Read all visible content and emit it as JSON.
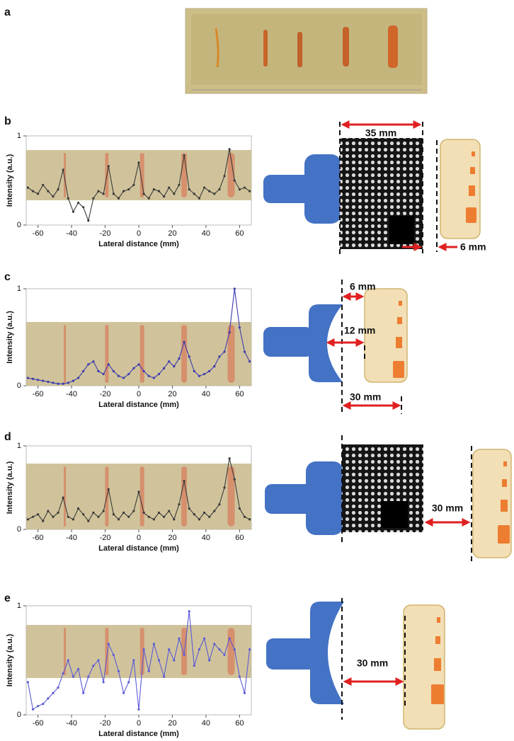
{
  "panels": [
    "a",
    "b",
    "c",
    "d",
    "e"
  ],
  "annotations": [
    "35 mm",
    "6 mm",
    "6 mm",
    "12 mm",
    "30 mm",
    "30 mm",
    "30 mm"
  ],
  "chart_data": [
    {
      "type": "line",
      "xlabel": "Lateral distance (mm)",
      "ylabel": "Intensity (a.u.)",
      "xlim": [
        -67,
        67
      ],
      "ylim": [
        0,
        1
      ],
      "xticks": [
        -60,
        -40,
        -20,
        0,
        20,
        40,
        60
      ],
      "yticks": [
        0,
        1
      ],
      "x": [
        -66,
        -63,
        -60,
        -57,
        -54,
        -51,
        -48,
        -45,
        -42,
        -39,
        -36,
        -33,
        -30,
        -27,
        -24,
        -21,
        -18,
        -15,
        -12,
        -9,
        -6,
        -3,
        0,
        3,
        6,
        9,
        12,
        15,
        18,
        21,
        24,
        27,
        30,
        33,
        36,
        39,
        42,
        45,
        48,
        51,
        54,
        57,
        60,
        63,
        66
      ],
      "series": [
        {
          "color": "#3a3a3a",
          "values": [
            0.42,
            0.38,
            0.35,
            0.45,
            0.38,
            0.32,
            0.4,
            0.62,
            0.3,
            0.15,
            0.25,
            0.2,
            0.05,
            0.3,
            0.38,
            0.35,
            0.66,
            0.35,
            0.3,
            0.38,
            0.4,
            0.45,
            0.7,
            0.35,
            0.3,
            0.4,
            0.38,
            0.32,
            0.42,
            0.35,
            0.45,
            0.78,
            0.4,
            0.35,
            0.3,
            0.42,
            0.38,
            0.35,
            0.4,
            0.55,
            0.85,
            0.5,
            0.4,
            0.42,
            0.38
          ]
        }
      ]
    },
    {
      "type": "line",
      "xlabel": "Lateral distance (mm)",
      "ylabel": "Intensity (a.u.)",
      "xlim": [
        -67,
        67
      ],
      "ylim": [
        0,
        1
      ],
      "xticks": [
        -60,
        -40,
        -20,
        0,
        20,
        40,
        60
      ],
      "yticks": [
        0,
        1
      ],
      "x": [
        -66,
        -63,
        -60,
        -57,
        -54,
        -51,
        -48,
        -45,
        -42,
        -39,
        -36,
        -33,
        -30,
        -27,
        -24,
        -21,
        -18,
        -15,
        -12,
        -9,
        -6,
        -3,
        0,
        3,
        6,
        9,
        12,
        15,
        18,
        21,
        24,
        27,
        30,
        33,
        36,
        39,
        42,
        45,
        48,
        51,
        54,
        57,
        60,
        63,
        66
      ],
      "series": [
        {
          "color": "#3b3bb0",
          "values": [
            0.08,
            0.07,
            0.06,
            0.05,
            0.04,
            0.03,
            0.02,
            0.02,
            0.03,
            0.05,
            0.08,
            0.15,
            0.22,
            0.25,
            0.15,
            0.12,
            0.22,
            0.15,
            0.1,
            0.08,
            0.12,
            0.18,
            0.22,
            0.15,
            0.1,
            0.08,
            0.12,
            0.18,
            0.25,
            0.2,
            0.28,
            0.45,
            0.3,
            0.15,
            0.1,
            0.12,
            0.15,
            0.2,
            0.3,
            0.35,
            0.55,
            1.0,
            0.6,
            0.35,
            0.25
          ]
        }
      ]
    },
    {
      "type": "line",
      "xlabel": "Lateral distance (mm)",
      "ylabel": "Intensity (a.u.)",
      "xlim": [
        -67,
        67
      ],
      "ylim": [
        0,
        1
      ],
      "xticks": [
        -60,
        -40,
        -20,
        0,
        20,
        40,
        60
      ],
      "yticks": [
        0,
        1
      ],
      "x": [
        -66,
        -63,
        -60,
        -57,
        -54,
        -51,
        -48,
        -45,
        -42,
        -39,
        -36,
        -33,
        -30,
        -27,
        -24,
        -21,
        -18,
        -15,
        -12,
        -9,
        -6,
        -3,
        0,
        3,
        6,
        9,
        12,
        15,
        18,
        21,
        24,
        27,
        30,
        33,
        36,
        39,
        42,
        45,
        48,
        51,
        54,
        57,
        60,
        63,
        66
      ],
      "series": [
        {
          "color": "#3a3a3a",
          "values": [
            0.12,
            0.15,
            0.18,
            0.1,
            0.22,
            0.15,
            0.2,
            0.38,
            0.15,
            0.12,
            0.25,
            0.18,
            0.1,
            0.2,
            0.15,
            0.22,
            0.48,
            0.18,
            0.12,
            0.2,
            0.15,
            0.22,
            0.45,
            0.2,
            0.15,
            0.12,
            0.2,
            0.15,
            0.22,
            0.12,
            0.3,
            0.58,
            0.25,
            0.18,
            0.12,
            0.2,
            0.15,
            0.22,
            0.3,
            0.5,
            0.85,
            0.6,
            0.25,
            0.15,
            0.12
          ]
        }
      ]
    },
    {
      "type": "line",
      "xlabel": "Lateral distance (mm)",
      "ylabel": "Intensity (a.u.)",
      "xlim": [
        -67,
        67
      ],
      "ylim": [
        0,
        1
      ],
      "xticks": [
        -60,
        -40,
        -20,
        0,
        20,
        40,
        60
      ],
      "yticks": [
        0,
        1
      ],
      "x": [
        -66,
        -63,
        -60,
        -57,
        -54,
        -51,
        -48,
        -45,
        -42,
        -39,
        -36,
        -33,
        -30,
        -27,
        -24,
        -21,
        -18,
        -15,
        -12,
        -9,
        -6,
        -3,
        0,
        3,
        6,
        9,
        12,
        15,
        18,
        21,
        24,
        27,
        30,
        33,
        36,
        39,
        42,
        45,
        48,
        51,
        54,
        57,
        60,
        63,
        66
      ],
      "series": [
        {
          "color": "#5b5bd6",
          "values": [
            0.3,
            0.05,
            0.08,
            0.1,
            0.15,
            0.2,
            0.25,
            0.38,
            0.5,
            0.35,
            0.42,
            0.2,
            0.35,
            0.45,
            0.5,
            0.3,
            0.65,
            0.55,
            0.4,
            0.2,
            0.3,
            0.5,
            0.05,
            0.6,
            0.4,
            0.65,
            0.5,
            0.35,
            0.6,
            0.5,
            0.7,
            0.55,
            0.95,
            0.45,
            0.6,
            0.7,
            0.5,
            0.65,
            0.6,
            0.55,
            0.7,
            0.6,
            0.35,
            0.2,
            0.6
          ]
        }
      ]
    }
  ]
}
